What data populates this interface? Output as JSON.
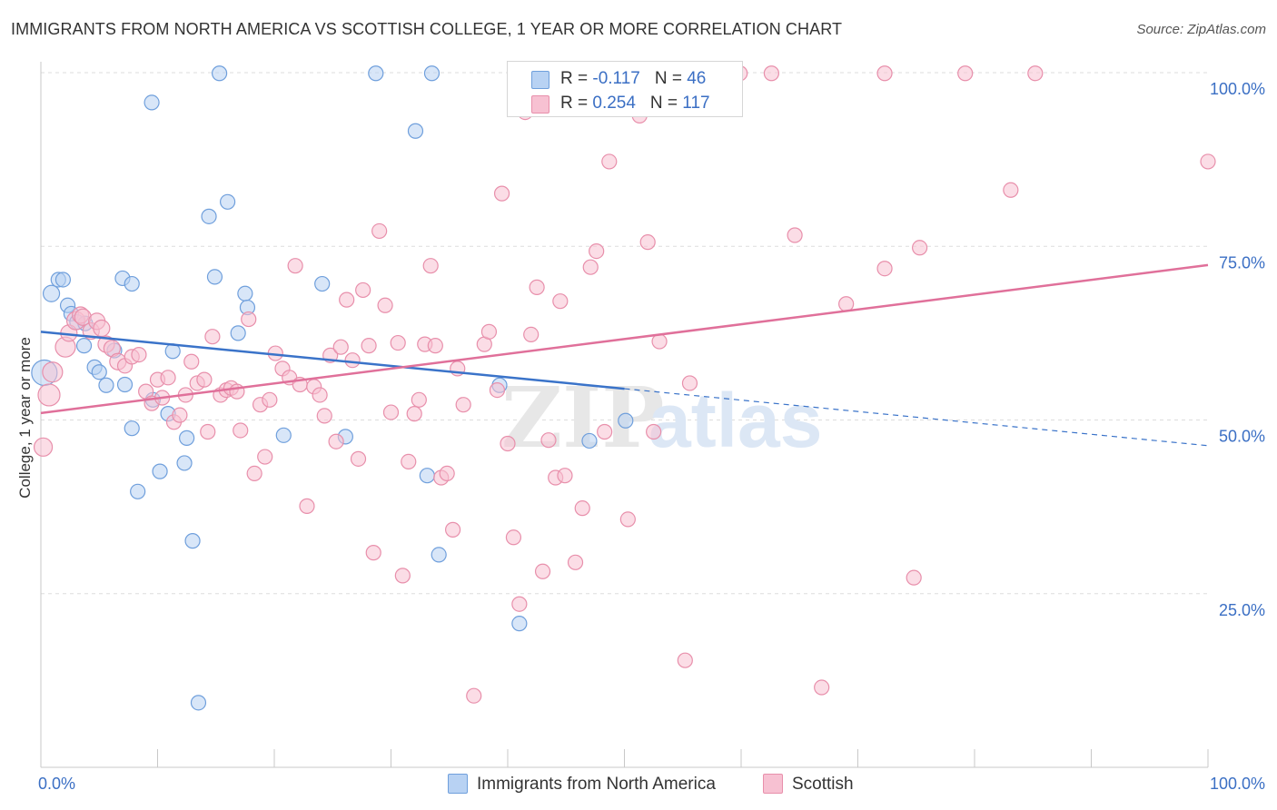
{
  "title": "IMMIGRANTS FROM NORTH AMERICA VS SCOTTISH COLLEGE, 1 YEAR OR MORE CORRELATION CHART",
  "source": "Source: ZipAtlas.com",
  "watermark": {
    "zip": "ZIP",
    "atlas": "atlas"
  },
  "colors": {
    "blue_fill": "#b8d2f3",
    "blue_stroke": "#6f9fdc",
    "blue_line": "#3a73c9",
    "pink_fill": "#f7c1d2",
    "pink_stroke": "#e88fab",
    "pink_line": "#e0709a",
    "axis_label": "#3b6fc4",
    "grid": "#dddddd"
  },
  "legend": {
    "series1": {
      "r_label": "R = ",
      "r_value": "-0.117",
      "n_label": "N = ",
      "n_value": "46"
    },
    "series2": {
      "r_label": "R = ",
      "r_value": "0.254",
      "n_label": "N = ",
      "n_value": "117"
    }
  },
  "chart_data": {
    "type": "scatter",
    "title": "IMMIGRANTS FROM NORTH AMERICA VS SCOTTISH COLLEGE, 1 YEAR OR MORE CORRELATION CHART",
    "xlabel": "",
    "ylabel": "College, 1 year or more",
    "xlim": [
      0,
      100
    ],
    "ylim": [
      0,
      103
    ],
    "x_tick_labels": [
      "0.0%",
      "100.0%"
    ],
    "y_ticks": [
      25,
      50,
      75,
      100
    ],
    "y_tick_labels": [
      "25.0%",
      "50.0%",
      "75.0%",
      "100.0%"
    ],
    "grid": "horizontal dashed",
    "legend_placement": "bottom-center",
    "series": [
      {
        "name": "Immigrants from North America",
        "color": "blue",
        "trend": {
          "x0": 0,
          "y0": 62.7,
          "x1": 50,
          "y1": 54.5,
          "dash_to_x": 100,
          "dash_to_y": 46.3
        },
        "points": [
          [
            0.3,
            56.8,
            28
          ],
          [
            0.9,
            68.2,
            18
          ],
          [
            1.5,
            70.2,
            16
          ],
          [
            1.9,
            70.2,
            16
          ],
          [
            2.3,
            66.5,
            16
          ],
          [
            2.6,
            65.3,
            16
          ],
          [
            3.1,
            64.1,
            16
          ],
          [
            3.8,
            63.9,
            16
          ],
          [
            3.7,
            60.7,
            16
          ],
          [
            4.6,
            57.6,
            16
          ],
          [
            5.0,
            56.9,
            16
          ],
          [
            5.6,
            55.0,
            16
          ],
          [
            6.3,
            60.0,
            16
          ],
          [
            7.2,
            55.1,
            16
          ],
          [
            7.8,
            48.8,
            16
          ],
          [
            8.3,
            39.7,
            16
          ],
          [
            7.0,
            70.4,
            16
          ],
          [
            7.8,
            69.6,
            16
          ],
          [
            9.6,
            52.9,
            16
          ],
          [
            10.2,
            42.6,
            16
          ],
          [
            10.9,
            50.9,
            16
          ],
          [
            11.3,
            59.9,
            16
          ],
          [
            12.3,
            43.8,
            16
          ],
          [
            12.5,
            47.4,
            16
          ],
          [
            13.0,
            32.6,
            16
          ],
          [
            13.5,
            9.3,
            16
          ],
          [
            14.4,
            79.3,
            16
          ],
          [
            14.9,
            70.6,
            16
          ],
          [
            15.3,
            99.9,
            16
          ],
          [
            16.0,
            81.4,
            16
          ],
          [
            16.9,
            62.5,
            16
          ],
          [
            17.5,
            68.2,
            16
          ],
          [
            17.7,
            66.2,
            16
          ],
          [
            20.8,
            47.8,
            16
          ],
          [
            24.1,
            69.6,
            16
          ],
          [
            26.1,
            47.6,
            16
          ],
          [
            28.7,
            99.9,
            16
          ],
          [
            32.1,
            91.6,
            16
          ],
          [
            33.1,
            42.0,
            16
          ],
          [
            33.5,
            99.9,
            16
          ],
          [
            34.1,
            30.6,
            16
          ],
          [
            39.3,
            55.0,
            16
          ],
          [
            41.0,
            20.7,
            16
          ],
          [
            47.0,
            47.0,
            16
          ],
          [
            50.1,
            49.9,
            16
          ],
          [
            9.5,
            95.7,
            16
          ]
        ]
      },
      {
        "name": "Scottish",
        "color": "pink",
        "trend": {
          "x0": 0,
          "y0": 51.0,
          "x1": 100,
          "y1": 72.3
        },
        "points": [
          [
            0.2,
            46.1,
            20
          ],
          [
            0.7,
            53.6,
            24
          ],
          [
            1.0,
            56.9,
            22
          ],
          [
            2.1,
            60.5,
            22
          ],
          [
            2.4,
            62.5,
            18
          ],
          [
            3.0,
            64.3,
            20
          ],
          [
            3.4,
            65.1,
            18
          ],
          [
            3.6,
            64.8,
            18
          ],
          [
            4.3,
            62.8,
            18
          ],
          [
            4.8,
            64.2,
            18
          ],
          [
            5.2,
            63.2,
            18
          ],
          [
            5.6,
            60.9,
            18
          ],
          [
            6.1,
            60.3,
            18
          ],
          [
            6.6,
            58.4,
            18
          ],
          [
            7.2,
            57.8,
            16
          ],
          [
            7.8,
            59.1,
            16
          ],
          [
            8.4,
            59.4,
            16
          ],
          [
            9.0,
            54.1,
            16
          ],
          [
            9.5,
            52.4,
            16
          ],
          [
            10.0,
            55.8,
            16
          ],
          [
            10.4,
            53.2,
            16
          ],
          [
            10.9,
            56.1,
            16
          ],
          [
            11.4,
            49.7,
            16
          ],
          [
            11.9,
            50.7,
            16
          ],
          [
            12.4,
            53.6,
            16
          ],
          [
            12.9,
            58.4,
            16
          ],
          [
            13.4,
            55.3,
            16
          ],
          [
            14.0,
            55.8,
            16
          ],
          [
            14.3,
            48.3,
            16
          ],
          [
            14.7,
            62.0,
            16
          ],
          [
            15.4,
            53.6,
            16
          ],
          [
            15.9,
            54.3,
            16
          ],
          [
            16.3,
            54.6,
            16
          ],
          [
            16.8,
            54.1,
            16
          ],
          [
            17.1,
            48.5,
            16
          ],
          [
            17.8,
            64.5,
            16
          ],
          [
            18.3,
            42.3,
            16
          ],
          [
            18.8,
            52.2,
            16
          ],
          [
            19.2,
            44.7,
            16
          ],
          [
            19.6,
            52.9,
            16
          ],
          [
            20.1,
            59.6,
            16
          ],
          [
            20.7,
            57.4,
            16
          ],
          [
            21.3,
            56.1,
            16
          ],
          [
            21.8,
            72.2,
            16
          ],
          [
            22.2,
            55.1,
            16
          ],
          [
            22.8,
            37.6,
            16
          ],
          [
            23.4,
            54.8,
            16
          ],
          [
            23.9,
            53.6,
            16
          ],
          [
            24.3,
            50.6,
            16
          ],
          [
            24.8,
            59.3,
            16
          ],
          [
            25.3,
            46.9,
            16
          ],
          [
            25.7,
            60.5,
            16
          ],
          [
            26.2,
            67.3,
            16
          ],
          [
            26.7,
            58.6,
            16
          ],
          [
            27.2,
            44.4,
            16
          ],
          [
            27.6,
            68.7,
            16
          ],
          [
            28.1,
            60.7,
            16
          ],
          [
            28.5,
            30.9,
            16
          ],
          [
            29.0,
            77.2,
            16
          ],
          [
            29.5,
            66.5,
            16
          ],
          [
            30.0,
            51.1,
            16
          ],
          [
            30.6,
            61.1,
            16
          ],
          [
            31.0,
            27.6,
            16
          ],
          [
            31.5,
            44.0,
            16
          ],
          [
            32.0,
            50.9,
            16
          ],
          [
            32.4,
            52.9,
            16
          ],
          [
            32.9,
            60.9,
            16
          ],
          [
            33.4,
            72.2,
            16
          ],
          [
            33.8,
            60.7,
            16
          ],
          [
            34.3,
            41.7,
            16
          ],
          [
            34.8,
            42.3,
            16
          ],
          [
            35.3,
            34.2,
            16
          ],
          [
            35.7,
            57.4,
            16
          ],
          [
            36.2,
            52.2,
            16
          ],
          [
            37.1,
            10.3,
            16
          ],
          [
            38.0,
            60.9,
            16
          ],
          [
            38.4,
            62.7,
            16
          ],
          [
            39.1,
            54.3,
            16
          ],
          [
            39.5,
            82.6,
            16
          ],
          [
            40.0,
            46.6,
            16
          ],
          [
            40.5,
            33.1,
            16
          ],
          [
            41.0,
            23.5,
            16
          ],
          [
            41.5,
            94.3,
            16
          ],
          [
            42.0,
            62.3,
            16
          ],
          [
            42.5,
            69.1,
            16
          ],
          [
            43.0,
            28.2,
            16
          ],
          [
            43.5,
            47.1,
            16
          ],
          [
            44.1,
            41.7,
            16
          ],
          [
            44.5,
            67.1,
            16
          ],
          [
            44.9,
            42.0,
            16
          ],
          [
            45.8,
            29.5,
            16
          ],
          [
            46.4,
            37.3,
            16
          ],
          [
            47.1,
            72.0,
            16
          ],
          [
            47.6,
            74.3,
            16
          ],
          [
            48.3,
            48.3,
            16
          ],
          [
            48.7,
            87.2,
            16
          ],
          [
            49.6,
            95.1,
            16
          ],
          [
            50.3,
            35.7,
            16
          ],
          [
            51.3,
            93.8,
            16
          ],
          [
            52.0,
            75.6,
            16
          ],
          [
            52.5,
            48.3,
            16
          ],
          [
            53.0,
            61.3,
            16
          ],
          [
            55.2,
            15.4,
            16
          ],
          [
            55.6,
            55.3,
            16
          ],
          [
            59.9,
            99.9,
            16
          ],
          [
            62.6,
            99.9,
            16
          ],
          [
            64.6,
            76.6,
            16
          ],
          [
            66.9,
            11.5,
            16
          ],
          [
            69.0,
            66.7,
            16
          ],
          [
            72.3,
            99.9,
            16
          ],
          [
            72.3,
            71.8,
            16
          ],
          [
            74.8,
            27.3,
            16
          ],
          [
            75.3,
            74.8,
            16
          ],
          [
            79.2,
            99.9,
            16
          ],
          [
            83.1,
            83.1,
            16
          ],
          [
            85.2,
            99.9,
            16
          ],
          [
            100.0,
            87.2,
            16
          ]
        ]
      }
    ]
  },
  "bottom_legend": {
    "series1_label": "Immigrants from North America",
    "series2_label": "Scottish"
  }
}
